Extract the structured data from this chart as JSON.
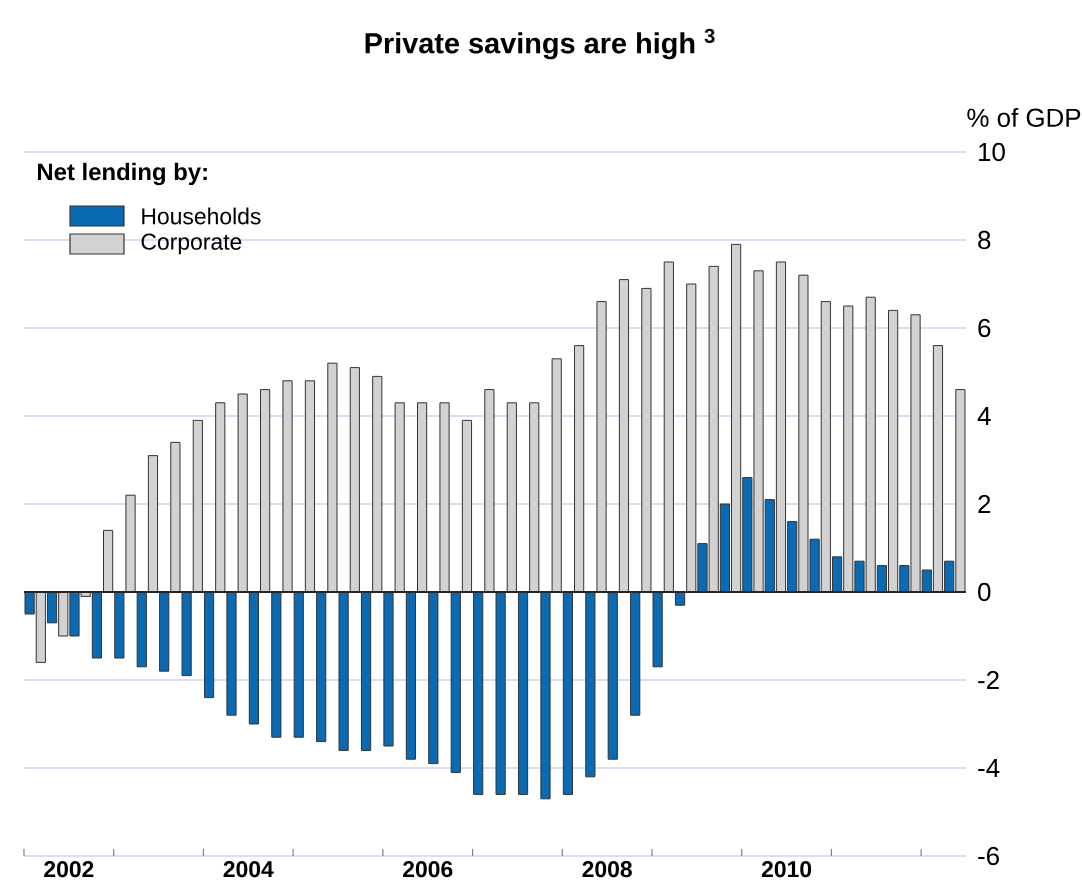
{
  "chart_data": {
    "type": "bar",
    "title": "Private savings are high $^{3}$",
    "ylabel": "% of GDP",
    "legend_title": "Net lending by:",
    "x": [
      2002.125,
      2002.375,
      2002.625,
      2002.875,
      2003.125,
      2003.375,
      2003.625,
      2003.875,
      2004.125,
      2004.375,
      2004.625,
      2004.875,
      2005.125,
      2005.375,
      2005.625,
      2005.875,
      2006.125,
      2006.375,
      2006.625,
      2006.875,
      2007.125,
      2007.375,
      2007.625,
      2007.875,
      2008.125,
      2008.375,
      2008.625,
      2008.875,
      2009.125,
      2009.375,
      2009.625,
      2009.875,
      2010.125,
      2010.375,
      2010.625,
      2010.875,
      2011.125,
      2011.375,
      2011.625,
      2011.875,
      2012.125,
      2012.375
    ],
    "series": [
      {
        "name": "Households",
        "color": "#0a6ab3",
        "values": [
          -0.5,
          -0.7,
          -1.0,
          -1.5,
          -1.5,
          -1.7,
          -1.8,
          -1.9,
          -2.4,
          -2.8,
          -3.0,
          -3.3,
          -3.3,
          -3.4,
          -3.6,
          -3.6,
          -3.5,
          -3.8,
          -3.9,
          -4.1,
          -4.6,
          -4.6,
          -4.6,
          -4.7,
          -4.6,
          -4.2,
          -3.8,
          -2.8,
          -1.7,
          -0.3,
          1.1,
          2.0,
          2.6,
          2.1,
          1.6,
          1.2,
          0.8,
          0.7,
          0.6,
          0.6,
          0.5,
          0.7
        ]
      },
      {
        "name": "Corporate",
        "color": "#d2d2d2",
        "values": [
          -1.6,
          -1.0,
          -0.1,
          1.4,
          2.2,
          3.1,
          3.4,
          3.9,
          4.3,
          4.5,
          4.6,
          4.8,
          4.8,
          5.2,
          5.1,
          4.9,
          4.3,
          4.3,
          4.3,
          3.9,
          4.6,
          4.3,
          4.3,
          5.3,
          5.6,
          6.6,
          7.1,
          6.9,
          7.5,
          7.0,
          7.4,
          7.9,
          7.3,
          7.5,
          7.2,
          6.6,
          6.5,
          6.7,
          6.4,
          6.3,
          5.6,
          4.6
        ]
      }
    ],
    "xlim": [
      2002,
      2012.5
    ],
    "xticks": [
      {
        "value": 2002,
        "label": null
      },
      {
        "value": 2003,
        "label": null
      },
      {
        "value": 2004,
        "label": null
      },
      {
        "value": 2005,
        "label": null
      },
      {
        "value": 2006,
        "label": null
      },
      {
        "value": 2007,
        "label": null
      },
      {
        "value": 2008,
        "label": null
      },
      {
        "value": 2009,
        "label": null
      },
      {
        "value": 2010,
        "label": null
      },
      {
        "value": 2011,
        "label": null
      },
      {
        "value": 2012,
        "label": null
      },
      {
        "value": 2002.5,
        "label": "2002"
      },
      {
        "value": 2004.5,
        "label": "2004"
      },
      {
        "value": 2006.5,
        "label": "2006"
      },
      {
        "value": 2008.5,
        "label": "2008"
      },
      {
        "value": 2010.5,
        "label": "2010"
      }
    ],
    "ylim": [
      -6,
      10
    ],
    "yticks": [
      -6,
      -4,
      -2,
      0,
      2,
      4,
      6,
      8,
      10
    ],
    "grid": "y",
    "legend": "top left"
  }
}
